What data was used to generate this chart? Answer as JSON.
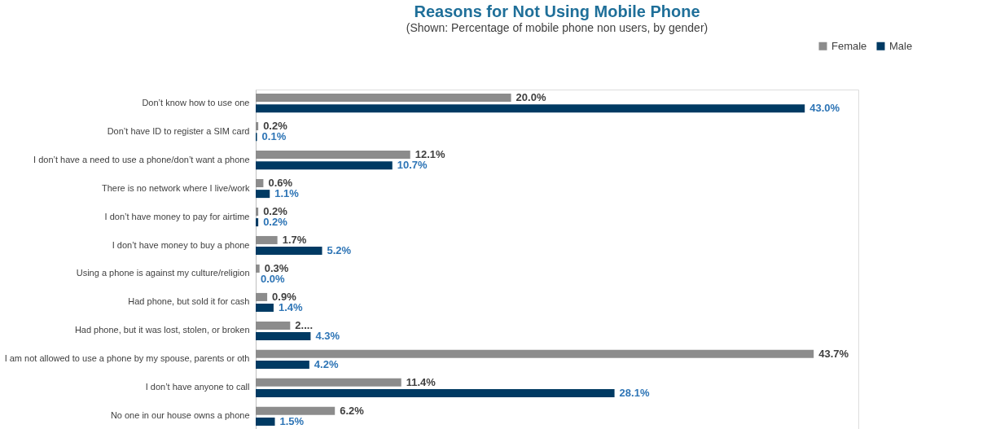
{
  "chart_data": {
    "type": "bar",
    "orientation": "horizontal",
    "title": "Reasons for Not Using Mobile Phone",
    "subtitle": "(Shown: Percentage of mobile phone non users, by gender)",
    "categories": [
      "Don’t know how to use one",
      "Don’t have ID to register a SIM card",
      "I don’t have a need to use a phone/don’t want a phone",
      "There is no network where I live/work",
      "I don’t have money to pay for airtime",
      "I don’t have money to buy a phone",
      "Using a phone is against my culture/religion",
      "Had phone, but sold it for cash",
      "Had phone, but it was lost, stolen, or broken",
      "I am not allowed to use a phone by my spouse, parents or oth",
      "I don’t have anyone to call",
      "No one in our house owns a phone"
    ],
    "series": [
      {
        "name": "Female",
        "color": "#8c8c8c",
        "values": [
          20.0,
          0.2,
          12.1,
          0.6,
          0.2,
          1.7,
          0.3,
          0.9,
          2.7,
          43.7,
          11.4,
          6.2
        ],
        "value_labels": [
          "20.0%",
          "0.2%",
          "12.1%",
          "0.6%",
          "0.2%",
          "1.7%",
          "0.3%",
          "0.9%",
          "2....",
          "43.7%",
          "11.4%",
          "6.2%"
        ]
      },
      {
        "name": "Male",
        "color": "#003a63",
        "values": [
          43.0,
          0.1,
          10.7,
          1.1,
          0.2,
          5.2,
          0.0,
          1.4,
          4.3,
          4.2,
          28.1,
          1.5
        ],
        "value_labels": [
          "43.0%",
          "0.1%",
          "10.7%",
          "1.1%",
          "0.2%",
          "5.2%",
          "0.0%",
          "1.4%",
          "4.3%",
          "4.2%",
          "28.1%",
          "1.5%"
        ]
      }
    ],
    "legend": "top right",
    "grid": false,
    "tick_labels": "y"
  }
}
